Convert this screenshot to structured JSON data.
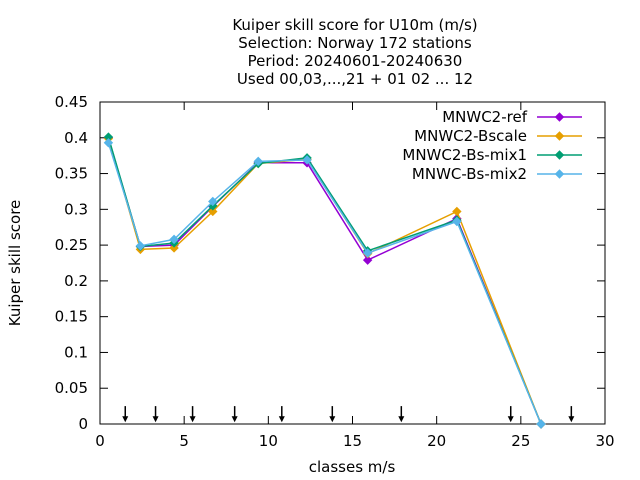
{
  "chart_data": {
    "type": "line",
    "title_lines": [
      "Kuiper skill score  for U10m (m/s)",
      "Selection: Norway    172 stations",
      "Period: 20240601-20240630",
      "Used 00,03,...,21 + 01 02 ... 12"
    ],
    "xlabel": "classes m/s",
    "ylabel": "Kuiper skill score",
    "xlim": [
      0,
      30
    ],
    "ylim": [
      0,
      0.45
    ],
    "x_ticks": [
      "0",
      "5",
      "10",
      "15",
      "20",
      "25",
      "30"
    ],
    "y_ticks": [
      "0",
      "0.05",
      "0.1",
      "0.15",
      "0.2",
      "0.25",
      "0.3",
      "0.35",
      "0.4",
      "0.45"
    ],
    "grid": false,
    "legend_position": "top-right",
    "x": [
      0.5,
      2.4,
      4.4,
      6.7,
      9.4,
      12.3,
      15.9,
      21.2,
      26.2
    ],
    "series": [
      {
        "name": "MNWC2-ref",
        "color": "#9400d3",
        "values": [
          0.4,
          0.248,
          0.25,
          0.304,
          0.365,
          0.365,
          0.229,
          0.287,
          0.0
        ]
      },
      {
        "name": "MNWC2-Bscale",
        "color": "#e69f00",
        "values": [
          0.399,
          0.244,
          0.246,
          0.297,
          0.364,
          0.37,
          0.238,
          0.297,
          0.0
        ]
      },
      {
        "name": "MNWC2-Bs-mix1",
        "color": "#009e73",
        "values": [
          0.401,
          0.248,
          0.253,
          0.305,
          0.364,
          0.372,
          0.242,
          0.285,
          0.0
        ]
      },
      {
        "name": "MNWC-Bs-mix2",
        "color": "#56b4e9",
        "values": [
          0.393,
          0.249,
          0.258,
          0.311,
          0.367,
          0.369,
          0.239,
          0.283,
          0.0
        ]
      }
    ],
    "arrows_x": [
      1.5,
      3.3,
      5.5,
      8.0,
      10.8,
      13.8,
      17.9,
      24.4,
      28.0
    ]
  }
}
